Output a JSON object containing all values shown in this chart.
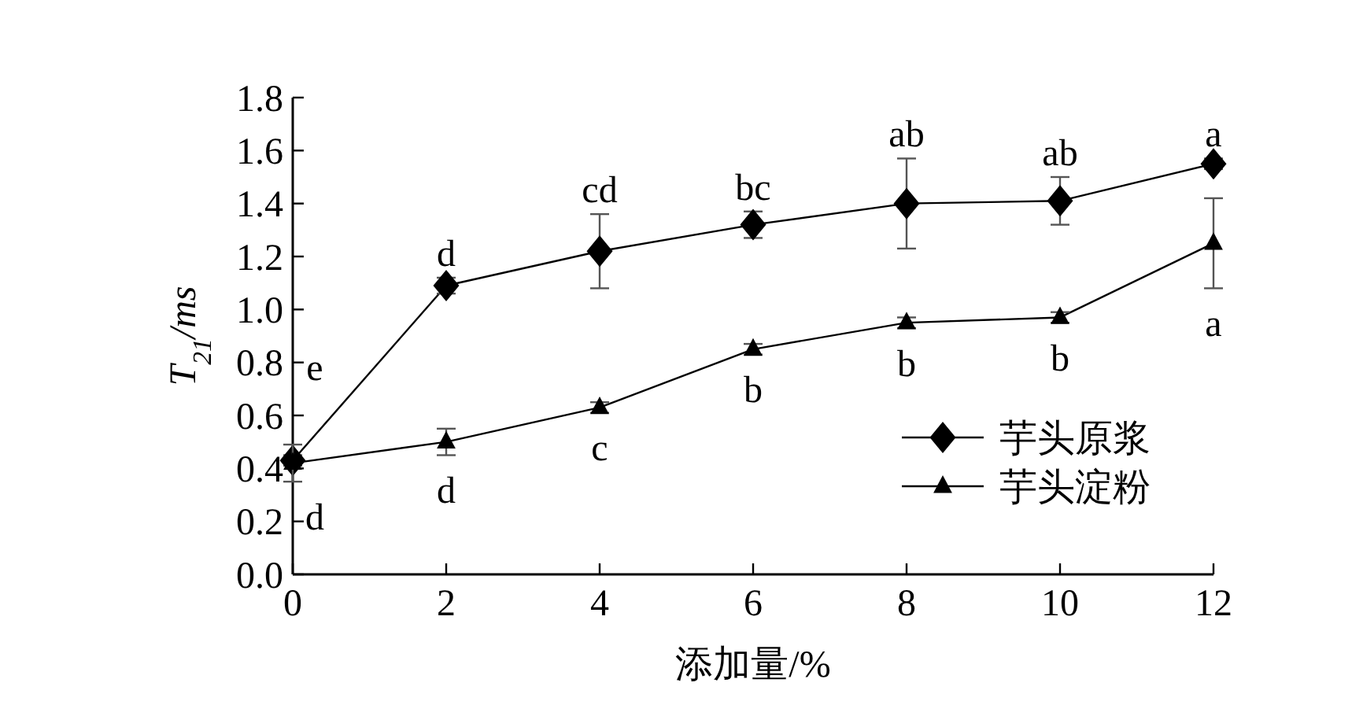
{
  "chart_data": {
    "type": "line",
    "xlabel": "添加量/%",
    "ylabel": "T$_{21}$/ms",
    "x": [
      0,
      2,
      4,
      6,
      8,
      10,
      12
    ],
    "series": [
      {
        "name": "芋头原浆",
        "color": "#000000",
        "marker": "diamond",
        "values": [
          0.43,
          1.09,
          1.22,
          1.32,
          1.4,
          1.41,
          1.55
        ],
        "errors": [
          0.02,
          0.03,
          0.14,
          0.05,
          0.17,
          0.09,
          0.02
        ]
      },
      {
        "name": "芋头淀粉",
        "color": "#000000",
        "marker": "triangle",
        "values": [
          0.42,
          0.5,
          0.63,
          0.85,
          0.95,
          0.97,
          1.25
        ],
        "errors": [
          0.07,
          0.05,
          0.02,
          0.02,
          0.02,
          0.02,
          0.17
        ]
      }
    ],
    "xlim": [
      0,
      12
    ],
    "xticks": [
      0,
      2,
      4,
      6,
      8,
      10,
      12
    ],
    "ylim": [
      0,
      1.8
    ],
    "yticks": [
      {
        "value": 0,
        "label": "0.0"
      },
      0.2,
      0.4,
      0.6,
      0.8,
      {
        "value": 1,
        "label": "1.0"
      },
      1.2,
      1.4,
      1.6,
      1.8
    ],
    "legend": "right",
    "grid": false,
    "line_style": "solid",
    "annotations": [
      {
        "text": "e",
        "x": 0,
        "y": 0.43
      },
      {
        "text": "d",
        "x": 0,
        "y": 0.42
      },
      {
        "text": "d",
        "x": 2,
        "y": 1.09
      },
      {
        "text": "d",
        "x": 2,
        "y": 0.5
      },
      {
        "text": "cd",
        "x": 4,
        "y": 1.22
      },
      {
        "text": "c",
        "x": 4,
        "y": 0.63
      },
      {
        "text": "bc",
        "x": 6,
        "y": 1.32
      },
      {
        "text": "b",
        "x": 6,
        "y": 0.85
      },
      {
        "text": "ab",
        "x": 8,
        "y": 1.4
      },
      {
        "text": "b",
        "x": 8,
        "y": 0.95
      },
      {
        "text": "ab",
        "x": 10,
        "y": 1.41
      },
      {
        "text": "b",
        "x": 10,
        "y": 0.97
      },
      {
        "text": "a",
        "x": 12,
        "y": 1.55
      },
      {
        "text": "a",
        "x": 12,
        "y": 1.25
      }
    ]
  }
}
